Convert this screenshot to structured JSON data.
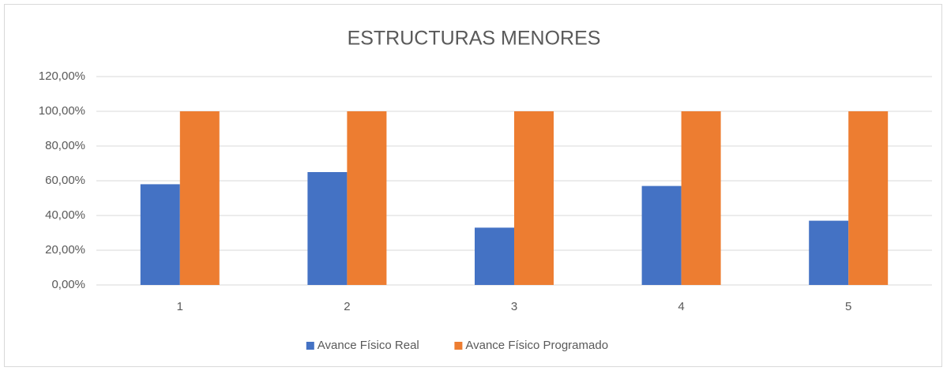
{
  "chart_data": {
    "type": "bar",
    "title": "ESTRUCTURAS MENORES",
    "categories": [
      "1",
      "2",
      "3",
      "4",
      "5"
    ],
    "series": [
      {
        "name": "Avance Físico Real",
        "color": "#4472c4",
        "values": [
          58,
          65,
          33,
          57,
          37
        ]
      },
      {
        "name": "Avance Físico Programado",
        "color": "#ed7d31",
        "values": [
          100,
          100,
          100,
          100,
          100
        ]
      }
    ],
    "ylim": [
      0,
      120
    ],
    "yticks": [
      {
        "value": 0,
        "label": "0,00%"
      },
      {
        "value": 20,
        "label": "20,00%"
      },
      {
        "value": 40,
        "label": "40,00%"
      },
      {
        "value": 60,
        "label": "60,00%"
      },
      {
        "value": 80,
        "label": "80,00%"
      },
      {
        "value": 100,
        "label": "100,00%"
      },
      {
        "value": 120,
        "label": "120,00%"
      }
    ],
    "grid": true,
    "legend": "bottom"
  }
}
